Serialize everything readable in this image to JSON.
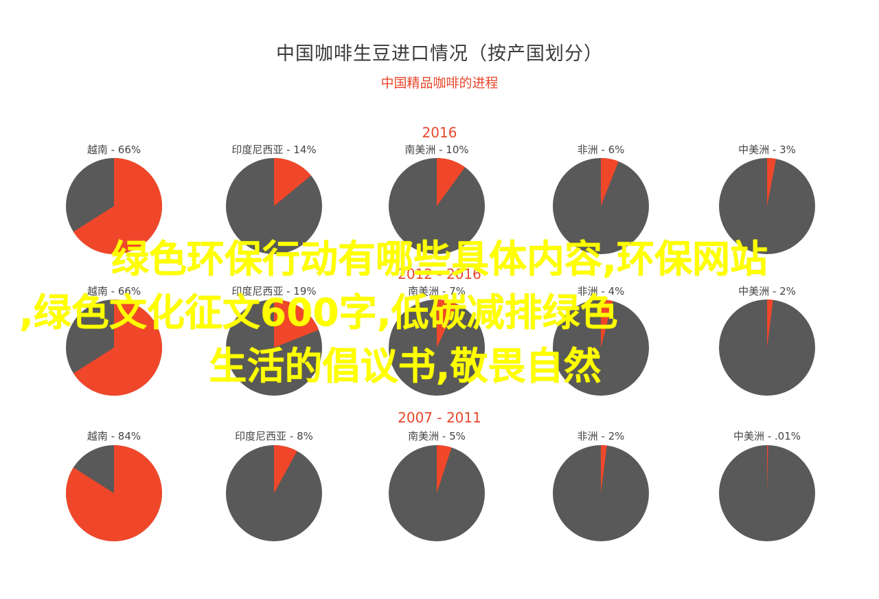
{
  "title": "中国咖啡生豆进口情况（按产国划分）",
  "subtitle": "中国精品咖啡的进程",
  "overlay": {
    "line1": "绿色环保行动有哪些具体内容,环保网站",
    "line2": ",绿色文化征文600字,低碳减排绿色",
    "line3": "生活的倡议书,敬畏自然"
  },
  "colors": {
    "accent": "#f0472a",
    "rest": "#595959",
    "period": "#e8472b",
    "label": "#444444"
  },
  "chart_data": [
    {
      "type": "pie",
      "period": "2016",
      "slices": [
        {
          "country": "越南",
          "label": "- 66%",
          "value": 66
        },
        {
          "country": "印度尼西亚",
          "label": "- 14%",
          "value": 14
        },
        {
          "country": "南美洲",
          "label": "- 10%",
          "value": 10
        },
        {
          "country": "非洲",
          "label": "- 6%",
          "value": 6
        },
        {
          "country": "中美洲",
          "label": "- 3%",
          "value": 3
        }
      ]
    },
    {
      "type": "pie",
      "period": "2012 - 2016",
      "slices": [
        {
          "country": "越南",
          "label": "- 66%",
          "value": 66
        },
        {
          "country": "印度尼西亚",
          "label": "- 19%",
          "value": 19
        },
        {
          "country": "南美洲",
          "label": "- 7%",
          "value": 7
        },
        {
          "country": "非洲",
          "label": "- 4%",
          "value": 4
        },
        {
          "country": "中美洲",
          "label": "- 2%",
          "value": 2
        }
      ]
    },
    {
      "type": "pie",
      "period": "2007 - 2011",
      "slices": [
        {
          "country": "越南",
          "label": "- 84%",
          "value": 84
        },
        {
          "country": "印度尼西亚",
          "label": "- 8%",
          "value": 8
        },
        {
          "country": "南美洲",
          "label": "- 5%",
          "value": 5
        },
        {
          "country": "非洲",
          "label": "- 2%",
          "value": 2
        },
        {
          "country": "中美洲",
          "label": "- .01%",
          "value": 0.01
        }
      ]
    }
  ]
}
